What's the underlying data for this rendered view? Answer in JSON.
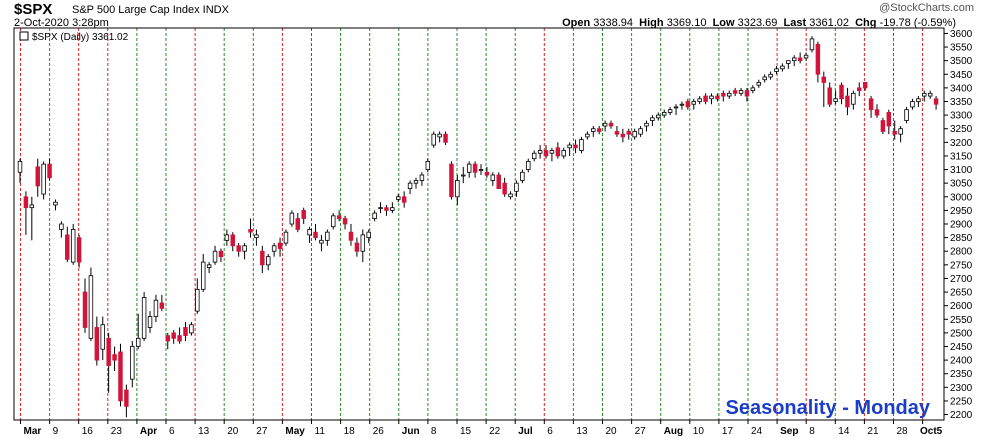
{
  "header": {
    "ticker": "$SPX",
    "description": "S&P 500 Large Cap Index INDX",
    "date": "2-Oct-2020 3:28pm",
    "open_label": "Open",
    "open": "3338.94",
    "high_label": "High",
    "high": "3369.10",
    "low_label": "Low",
    "low": "3323.69",
    "last_label": "Last",
    "last": "3361.02",
    "chg_label": "Chg",
    "chg": "-19.78 (-0.59%)",
    "brand": "@StockCharts.com"
  },
  "legend": {
    "text": "$SPX (Daily) 3361.02"
  },
  "caption": "Seasonality - Monday",
  "colors": {
    "up_fill": "#ffffff",
    "down_fill": "#d2143a",
    "outline": "#000000",
    "monday_line": "#2a8a2a",
    "other_line": "#d42424",
    "caption": "#1a3ec8"
  },
  "chart_data": {
    "type": "candlestick",
    "ylim": [
      2180,
      3620
    ],
    "y_ticks": [
      2200,
      2250,
      2300,
      2350,
      2400,
      2450,
      2500,
      2550,
      2600,
      2650,
      2700,
      2750,
      2800,
      2850,
      2900,
      2950,
      3000,
      3050,
      3100,
      3150,
      3200,
      3250,
      3300,
      3350,
      3400,
      3450,
      3500,
      3550,
      3600
    ],
    "x_labels": [
      "Mar",
      "9",
      "16",
      "23",
      "Apr",
      "6",
      "13",
      "20",
      "27",
      "May",
      "11",
      "18",
      "26",
      "Jun",
      "8",
      "15",
      "22",
      "Jul",
      "6",
      "13",
      "20",
      "27",
      "Aug",
      "10",
      "17",
      "24",
      "Sep",
      "8",
      "14",
      "21",
      "28",
      "Oct5"
    ],
    "month_labels": [
      "Mar",
      "Apr",
      "May",
      "Jun",
      "Jul",
      "Aug",
      "Sep",
      "Oct5"
    ],
    "vertical_lines": [
      {
        "label": "Mar",
        "color": "red"
      },
      {
        "label": "9",
        "color": "green"
      },
      {
        "label": "16",
        "color": "red"
      },
      {
        "label": "23",
        "color": "red"
      },
      {
        "label": "Apr",
        "color": "green"
      },
      {
        "label": "6",
        "color": "green"
      },
      {
        "label": "13",
        "color": "red"
      },
      {
        "label": "20",
        "color": "green"
      },
      {
        "label": "27",
        "color": "green"
      },
      {
        "label": "May",
        "color": "red"
      },
      {
        "label": "11",
        "color": "red"
      },
      {
        "label": "18",
        "color": "green"
      },
      {
        "label": "26",
        "color": "green"
      },
      {
        "label": "Jun",
        "color": "green"
      },
      {
        "label": "8",
        "color": "green"
      },
      {
        "label": "15",
        "color": "green"
      },
      {
        "label": "22",
        "color": "green"
      },
      {
        "label": "Jul",
        "color": "green"
      },
      {
        "label": "6",
        "color": "red"
      },
      {
        "label": "13",
        "color": "green"
      },
      {
        "label": "20",
        "color": "green"
      },
      {
        "label": "27",
        "color": "green"
      },
      {
        "label": "Aug",
        "color": "green"
      },
      {
        "label": "10",
        "color": "green"
      },
      {
        "label": "17",
        "color": "green"
      },
      {
        "label": "24",
        "color": "green"
      },
      {
        "label": "Sep",
        "color": "red"
      },
      {
        "label": "8",
        "color": "red"
      },
      {
        "label": "14",
        "color": "green"
      },
      {
        "label": "21",
        "color": "red"
      },
      {
        "label": "28",
        "color": "green"
      },
      {
        "label": "Oct5",
        "color": "red"
      }
    ],
    "candles": [
      {
        "o": 3090,
        "h": 3140,
        "l": 3050,
        "c": 3130
      },
      {
        "o": 3000,
        "h": 3020,
        "l": 2860,
        "c": 2960
      },
      {
        "o": 2960,
        "h": 3000,
        "l": 2840,
        "c": 2970
      },
      {
        "o": 3110,
        "h": 3140,
        "l": 3000,
        "c": 3040
      },
      {
        "o": 3010,
        "h": 3130,
        "l": 2990,
        "c": 3120
      },
      {
        "o": 3120,
        "h": 3140,
        "l": 3060,
        "c": 3070
      },
      {
        "o": 2970,
        "h": 2990,
        "l": 2950,
        "c": 2980
      },
      {
        "o": 2880,
        "h": 2910,
        "l": 2850,
        "c": 2900
      },
      {
        "o": 2860,
        "h": 2890,
        "l": 2760,
        "c": 2770
      },
      {
        "o": 2760,
        "h": 2900,
        "l": 2750,
        "c": 2880
      },
      {
        "o": 2850,
        "h": 2860,
        "l": 2740,
        "c": 2760
      },
      {
        "o": 2650,
        "h": 2700,
        "l": 2500,
        "c": 2520
      },
      {
        "o": 2480,
        "h": 2740,
        "l": 2470,
        "c": 2710
      },
      {
        "o": 2520,
        "h": 2560,
        "l": 2380,
        "c": 2400
      },
      {
        "o": 2440,
        "h": 2560,
        "l": 2400,
        "c": 2530
      },
      {
        "o": 2480,
        "h": 2500,
        "l": 2280,
        "c": 2380
      },
      {
        "o": 2420,
        "h": 2450,
        "l": 2360,
        "c": 2400
      },
      {
        "o": 2430,
        "h": 2460,
        "l": 2230,
        "c": 2250
      },
      {
        "o": 2290,
        "h": 2310,
        "l": 2190,
        "c": 2230
      },
      {
        "o": 2330,
        "h": 2470,
        "l": 2300,
        "c": 2450
      },
      {
        "o": 2450,
        "h": 2570,
        "l": 2440,
        "c": 2480
      },
      {
        "o": 2480,
        "h": 2650,
        "l": 2470,
        "c": 2630
      },
      {
        "o": 2520,
        "h": 2580,
        "l": 2500,
        "c": 2560
      },
      {
        "o": 2560,
        "h": 2640,
        "l": 2540,
        "c": 2620
      },
      {
        "o": 2610,
        "h": 2640,
        "l": 2580,
        "c": 2590
      },
      {
        "o": 2490,
        "h": 2500,
        "l": 2440,
        "c": 2470
      },
      {
        "o": 2500,
        "h": 2510,
        "l": 2460,
        "c": 2480
      },
      {
        "o": 2490,
        "h": 2520,
        "l": 2460,
        "c": 2470
      },
      {
        "o": 2520,
        "h": 2540,
        "l": 2470,
        "c": 2490
      },
      {
        "o": 2500,
        "h": 2540,
        "l": 2490,
        "c": 2530
      },
      {
        "o": 2580,
        "h": 2700,
        "l": 2570,
        "c": 2660
      },
      {
        "o": 2660,
        "h": 2790,
        "l": 2650,
        "c": 2760
      },
      {
        "o": 2740,
        "h": 2760,
        "l": 2720,
        "c": 2750
      },
      {
        "o": 2760,
        "h": 2820,
        "l": 2750,
        "c": 2800
      },
      {
        "o": 2800,
        "h": 2810,
        "l": 2760,
        "c": 2780
      },
      {
        "o": 2840,
        "h": 2880,
        "l": 2820,
        "c": 2860
      },
      {
        "o": 2860,
        "h": 2870,
        "l": 2800,
        "c": 2820
      },
      {
        "o": 2820,
        "h": 2830,
        "l": 2780,
        "c": 2800
      },
      {
        "o": 2800,
        "h": 2830,
        "l": 2770,
        "c": 2820
      },
      {
        "o": 2880,
        "h": 2920,
        "l": 2850,
        "c": 2870
      },
      {
        "o": 2850,
        "h": 2880,
        "l": 2820,
        "c": 2860
      },
      {
        "o": 2800,
        "h": 2820,
        "l": 2720,
        "c": 2750
      },
      {
        "o": 2750,
        "h": 2790,
        "l": 2730,
        "c": 2780
      },
      {
        "o": 2800,
        "h": 2830,
        "l": 2780,
        "c": 2820
      },
      {
        "o": 2830,
        "h": 2850,
        "l": 2780,
        "c": 2810
      },
      {
        "o": 2830,
        "h": 2880,
        "l": 2820,
        "c": 2870
      },
      {
        "o": 2900,
        "h": 2950,
        "l": 2890,
        "c": 2940
      },
      {
        "o": 2920,
        "h": 2940,
        "l": 2870,
        "c": 2880
      },
      {
        "o": 2950,
        "h": 2960,
        "l": 2900,
        "c": 2920
      },
      {
        "o": 2860,
        "h": 2890,
        "l": 2830,
        "c": 2880
      },
      {
        "o": 2870,
        "h": 2900,
        "l": 2840,
        "c": 2850
      },
      {
        "o": 2830,
        "h": 2860,
        "l": 2800,
        "c": 2840
      },
      {
        "o": 2840,
        "h": 2880,
        "l": 2820,
        "c": 2870
      },
      {
        "o": 2890,
        "h": 2940,
        "l": 2880,
        "c": 2930
      },
      {
        "o": 2930,
        "h": 2950,
        "l": 2910,
        "c": 2920
      },
      {
        "o": 2920,
        "h": 2930,
        "l": 2880,
        "c": 2900
      },
      {
        "o": 2870,
        "h": 2900,
        "l": 2820,
        "c": 2840
      },
      {
        "o": 2830,
        "h": 2850,
        "l": 2780,
        "c": 2800
      },
      {
        "o": 2800,
        "h": 2880,
        "l": 2760,
        "c": 2860
      },
      {
        "o": 2850,
        "h": 2880,
        "l": 2830,
        "c": 2870
      },
      {
        "o": 2920,
        "h": 2950,
        "l": 2910,
        "c": 2940
      },
      {
        "o": 2960,
        "h": 2980,
        "l": 2940,
        "c": 2960
      },
      {
        "o": 2960,
        "h": 2970,
        "l": 2930,
        "c": 2950
      },
      {
        "o": 2950,
        "h": 2980,
        "l": 2940,
        "c": 2960
      },
      {
        "o": 2990,
        "h": 3010,
        "l": 2980,
        "c": 3000
      },
      {
        "o": 3000,
        "h": 3020,
        "l": 2960,
        "c": 2980
      },
      {
        "o": 3030,
        "h": 3060,
        "l": 3010,
        "c": 3050
      },
      {
        "o": 3050,
        "h": 3070,
        "l": 3030,
        "c": 3060
      },
      {
        "o": 3060,
        "h": 3090,
        "l": 3040,
        "c": 3080
      },
      {
        "o": 3100,
        "h": 3140,
        "l": 3090,
        "c": 3130
      },
      {
        "o": 3190,
        "h": 3240,
        "l": 3180,
        "c": 3230
      },
      {
        "o": 3220,
        "h": 3240,
        "l": 3200,
        "c": 3230
      },
      {
        "o": 3230,
        "h": 3240,
        "l": 3190,
        "c": 3200
      },
      {
        "o": 3120,
        "h": 3130,
        "l": 2990,
        "c": 3000
      },
      {
        "o": 3000,
        "h": 3080,
        "l": 2970,
        "c": 3060
      },
      {
        "o": 3080,
        "h": 3110,
        "l": 3050,
        "c": 3080
      },
      {
        "o": 3090,
        "h": 3130,
        "l": 3070,
        "c": 3120
      },
      {
        "o": 3120,
        "h": 3130,
        "l": 3070,
        "c": 3090
      },
      {
        "o": 3100,
        "h": 3120,
        "l": 3080,
        "c": 3100
      },
      {
        "o": 3090,
        "h": 3110,
        "l": 3070,
        "c": 3080
      },
      {
        "o": 3060,
        "h": 3090,
        "l": 3040,
        "c": 3080
      },
      {
        "o": 3080,
        "h": 3090,
        "l": 3030,
        "c": 3030
      },
      {
        "o": 3050,
        "h": 3070,
        "l": 3000,
        "c": 3010
      },
      {
        "o": 3000,
        "h": 3020,
        "l": 2990,
        "c": 3010
      },
      {
        "o": 3020,
        "h": 3060,
        "l": 3000,
        "c": 3050
      },
      {
        "o": 3060,
        "h": 3100,
        "l": 3050,
        "c": 3090
      },
      {
        "o": 3100,
        "h": 3140,
        "l": 3090,
        "c": 3130
      },
      {
        "o": 3140,
        "h": 3170,
        "l": 3130,
        "c": 3160
      },
      {
        "o": 3160,
        "h": 3190,
        "l": 3140,
        "c": 3170
      },
      {
        "o": 3170,
        "h": 3190,
        "l": 3140,
        "c": 3150
      },
      {
        "o": 3160,
        "h": 3180,
        "l": 3130,
        "c": 3170
      },
      {
        "o": 3180,
        "h": 3200,
        "l": 3140,
        "c": 3150
      },
      {
        "o": 3150,
        "h": 3180,
        "l": 3140,
        "c": 3170
      },
      {
        "o": 3180,
        "h": 3200,
        "l": 3150,
        "c": 3190
      },
      {
        "o": 3190,
        "h": 3210,
        "l": 3160,
        "c": 3180
      },
      {
        "o": 3170,
        "h": 3220,
        "l": 3160,
        "c": 3210
      },
      {
        "o": 3220,
        "h": 3240,
        "l": 3210,
        "c": 3230
      },
      {
        "o": 3240,
        "h": 3260,
        "l": 3220,
        "c": 3250
      },
      {
        "o": 3250,
        "h": 3260,
        "l": 3230,
        "c": 3240
      },
      {
        "o": 3260,
        "h": 3280,
        "l": 3240,
        "c": 3270
      },
      {
        "o": 3270,
        "h": 3280,
        "l": 3250,
        "c": 3260
      },
      {
        "o": 3240,
        "h": 3260,
        "l": 3220,
        "c": 3230
      },
      {
        "o": 3230,
        "h": 3250,
        "l": 3200,
        "c": 3220
      },
      {
        "o": 3240,
        "h": 3250,
        "l": 3210,
        "c": 3230
      },
      {
        "o": 3220,
        "h": 3250,
        "l": 3210,
        "c": 3240
      },
      {
        "o": 3230,
        "h": 3260,
        "l": 3220,
        "c": 3250
      },
      {
        "o": 3260,
        "h": 3280,
        "l": 3240,
        "c": 3270
      },
      {
        "o": 3280,
        "h": 3300,
        "l": 3260,
        "c": 3290
      },
      {
        "o": 3290,
        "h": 3310,
        "l": 3280,
        "c": 3300
      },
      {
        "o": 3300,
        "h": 3320,
        "l": 3290,
        "c": 3310
      },
      {
        "o": 3310,
        "h": 3330,
        "l": 3300,
        "c": 3320
      },
      {
        "o": 3330,
        "h": 3340,
        "l": 3300,
        "c": 3330
      },
      {
        "o": 3340,
        "h": 3350,
        "l": 3320,
        "c": 3340
      },
      {
        "o": 3350,
        "h": 3360,
        "l": 3320,
        "c": 3330
      },
      {
        "o": 3340,
        "h": 3360,
        "l": 3320,
        "c": 3350
      },
      {
        "o": 3350,
        "h": 3370,
        "l": 3340,
        "c": 3360
      },
      {
        "o": 3370,
        "h": 3380,
        "l": 3340,
        "c": 3350
      },
      {
        "o": 3360,
        "h": 3380,
        "l": 3340,
        "c": 3370
      },
      {
        "o": 3370,
        "h": 3380,
        "l": 3350,
        "c": 3360
      },
      {
        "o": 3380,
        "h": 3390,
        "l": 3350,
        "c": 3370
      },
      {
        "o": 3370,
        "h": 3390,
        "l": 3360,
        "c": 3380
      },
      {
        "o": 3390,
        "h": 3400,
        "l": 3370,
        "c": 3380
      },
      {
        "o": 3380,
        "h": 3400,
        "l": 3370,
        "c": 3390
      },
      {
        "o": 3390,
        "h": 3400,
        "l": 3350,
        "c": 3370
      },
      {
        "o": 3390,
        "h": 3410,
        "l": 3380,
        "c": 3400
      },
      {
        "o": 3410,
        "h": 3430,
        "l": 3400,
        "c": 3420
      },
      {
        "o": 3430,
        "h": 3450,
        "l": 3420,
        "c": 3440
      },
      {
        "o": 3440,
        "h": 3460,
        "l": 3430,
        "c": 3450
      },
      {
        "o": 3460,
        "h": 3480,
        "l": 3450,
        "c": 3470
      },
      {
        "o": 3470,
        "h": 3490,
        "l": 3460,
        "c": 3480
      },
      {
        "o": 3490,
        "h": 3500,
        "l": 3470,
        "c": 3500
      },
      {
        "o": 3500,
        "h": 3520,
        "l": 3480,
        "c": 3510
      },
      {
        "o": 3510,
        "h": 3530,
        "l": 3490,
        "c": 3500
      },
      {
        "o": 3510,
        "h": 3530,
        "l": 3500,
        "c": 3520
      },
      {
        "o": 3540,
        "h": 3590,
        "l": 3530,
        "c": 3580
      },
      {
        "o": 3560,
        "h": 3570,
        "l": 3420,
        "c": 3450
      },
      {
        "o": 3440,
        "h": 3460,
        "l": 3330,
        "c": 3420
      },
      {
        "o": 3400,
        "h": 3420,
        "l": 3330,
        "c": 3340
      },
      {
        "o": 3350,
        "h": 3390,
        "l": 3340,
        "c": 3360
      },
      {
        "o": 3410,
        "h": 3420,
        "l": 3340,
        "c": 3360
      },
      {
        "o": 3370,
        "h": 3400,
        "l": 3300,
        "c": 3330
      },
      {
        "o": 3340,
        "h": 3390,
        "l": 3320,
        "c": 3380
      },
      {
        "o": 3400,
        "h": 3420,
        "l": 3370,
        "c": 3390
      },
      {
        "o": 3420,
        "h": 3420,
        "l": 3390,
        "c": 3400
      },
      {
        "o": 3360,
        "h": 3370,
        "l": 3290,
        "c": 3320
      },
      {
        "o": 3320,
        "h": 3340,
        "l": 3290,
        "c": 3300
      },
      {
        "o": 3280,
        "h": 3290,
        "l": 3230,
        "c": 3240
      },
      {
        "o": 3310,
        "h": 3320,
        "l": 3230,
        "c": 3260
      },
      {
        "o": 3240,
        "h": 3280,
        "l": 3210,
        "c": 3230
      },
      {
        "o": 3230,
        "h": 3260,
        "l": 3200,
        "c": 3250
      },
      {
        "o": 3280,
        "h": 3330,
        "l": 3270,
        "c": 3320
      },
      {
        "o": 3330,
        "h": 3360,
        "l": 3320,
        "c": 3350
      },
      {
        "o": 3350,
        "h": 3370,
        "l": 3330,
        "c": 3360
      },
      {
        "o": 3370,
        "h": 3390,
        "l": 3350,
        "c": 3380
      },
      {
        "o": 3370,
        "h": 3390,
        "l": 3360,
        "c": 3380
      },
      {
        "o": 3360,
        "h": 3370,
        "l": 3320,
        "c": 3340
      }
    ]
  }
}
